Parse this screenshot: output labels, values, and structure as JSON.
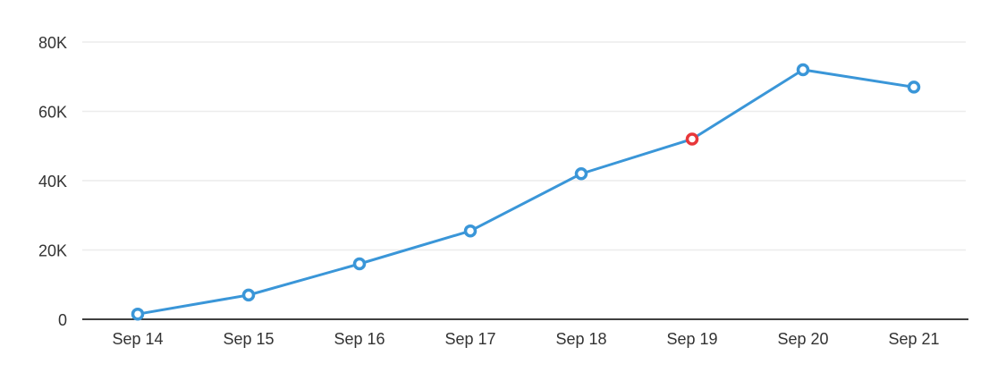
{
  "chart_data": {
    "type": "line",
    "categories": [
      "Sep 14",
      "Sep 15",
      "Sep 16",
      "Sep 17",
      "Sep 18",
      "Sep 19",
      "Sep 20",
      "Sep 21"
    ],
    "series": [
      {
        "values": [
          1500,
          7000,
          16000,
          25500,
          42000,
          52000,
          72000,
          67000
        ]
      }
    ],
    "highlighted_index": 5,
    "ylim": [
      0,
      80000
    ],
    "yticks": [
      0,
      20000,
      40000,
      60000,
      80000
    ],
    "ytick_labels": [
      "0",
      "20K",
      "40K",
      "60K",
      "80K"
    ],
    "grid": true,
    "title": "",
    "xlabel": "",
    "ylabel": "",
    "colors": {
      "line": "#3a96d8",
      "marker": "#3a96d8",
      "highlight_marker": "#e8373a",
      "grid": "#ececec",
      "axis": "#000000",
      "text": "#333333"
    }
  }
}
